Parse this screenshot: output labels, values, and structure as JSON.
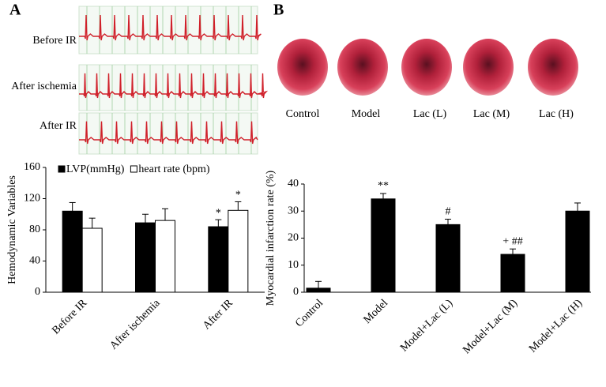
{
  "panels": {
    "a": "A",
    "b": "B"
  },
  "ecg_labels": [
    "Before IR",
    "After ischemia",
    "After IR"
  ],
  "heart_labels": [
    "Control",
    "Model",
    "Lac (L)",
    "Lac (M)",
    "Lac (H)"
  ],
  "chart_data": [
    {
      "type": "grouped_bar",
      "y_label": "Hemodynamic Variables",
      "categories": [
        "Before IR",
        "After ischemia",
        "After IR"
      ],
      "series": [
        {
          "name": "LVP(mmHg)",
          "color": "#000000",
          "values": [
            104,
            89,
            84
          ],
          "errors": [
            11,
            11,
            9
          ]
        },
        {
          "name": "heart rate (bpm)",
          "color": "#ffffff",
          "values": [
            82,
            92,
            105
          ],
          "errors": [
            13,
            15,
            11
          ]
        }
      ],
      "annotations": [
        {
          "text": "*",
          "category": "After IR",
          "series": "LVP(mmHg)"
        },
        {
          "text": "*",
          "category": "After IR",
          "series": "heart rate (bpm)"
        }
      ],
      "ylim": [
        0,
        160
      ],
      "yticks": [
        0,
        40,
        80,
        120,
        160
      ],
      "grid": false,
      "legend": "top"
    },
    {
      "type": "bar",
      "y_label": "Myocardial infarction rate (%)",
      "categories": [
        "Control",
        "Model",
        "Model+Lac (L)",
        "Model+Lac (M)",
        "Model+Lac (H)"
      ],
      "values": [
        1.5,
        34.5,
        25,
        14,
        30
      ],
      "errors": [
        2.5,
        2,
        2,
        2,
        3
      ],
      "color": "#000000",
      "annotations": [
        {
          "text": "**",
          "category": "Model"
        },
        {
          "text": "#",
          "category": "Model+Lac (L)"
        },
        {
          "text": "+ ##",
          "category": "Model+Lac (M)"
        }
      ],
      "ylim": [
        0,
        40
      ],
      "yticks": [
        0,
        10,
        20,
        30,
        40
      ],
      "grid": false
    }
  ]
}
